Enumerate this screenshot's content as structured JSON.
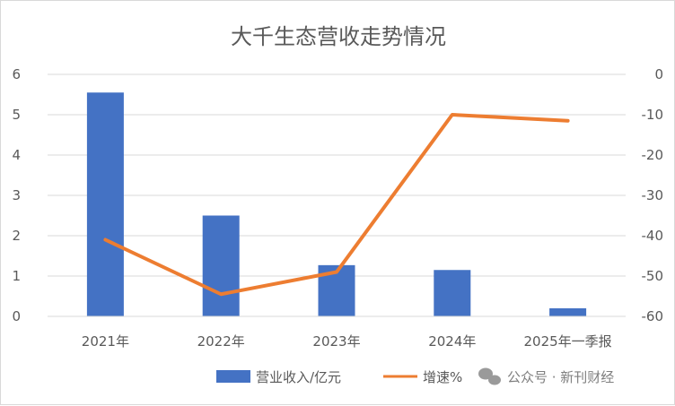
{
  "chart_data": {
    "type": "bar+line",
    "title": "大千生态营收走势情况",
    "categories": [
      "2021年",
      "2022年",
      "2023年",
      "2024年",
      "2025年一季报"
    ],
    "series": [
      {
        "name": "营业收入/亿元",
        "type": "bar",
        "axis": "left",
        "color": "#4472C4",
        "values": [
          5.55,
          2.5,
          1.27,
          1.15,
          0.2
        ]
      },
      {
        "name": "增速%",
        "type": "line",
        "axis": "right",
        "color": "#ED7D31",
        "values": [
          -41,
          -54.5,
          -49,
          -10,
          -11.5
        ]
      }
    ],
    "y_left": {
      "min": 0,
      "max": 6,
      "ticks": [
        "0",
        "1",
        "2",
        "3",
        "4",
        "5",
        "6"
      ]
    },
    "y_right": {
      "min": -60,
      "max": 0,
      "ticks": [
        "-60",
        "-50",
        "-40",
        "-30",
        "-20",
        "-10",
        "0"
      ]
    },
    "grid": true,
    "legend_position": "bottom"
  },
  "watermark": {
    "text": "公众号 · 新刊财经",
    "icon": "wechat-icon"
  }
}
